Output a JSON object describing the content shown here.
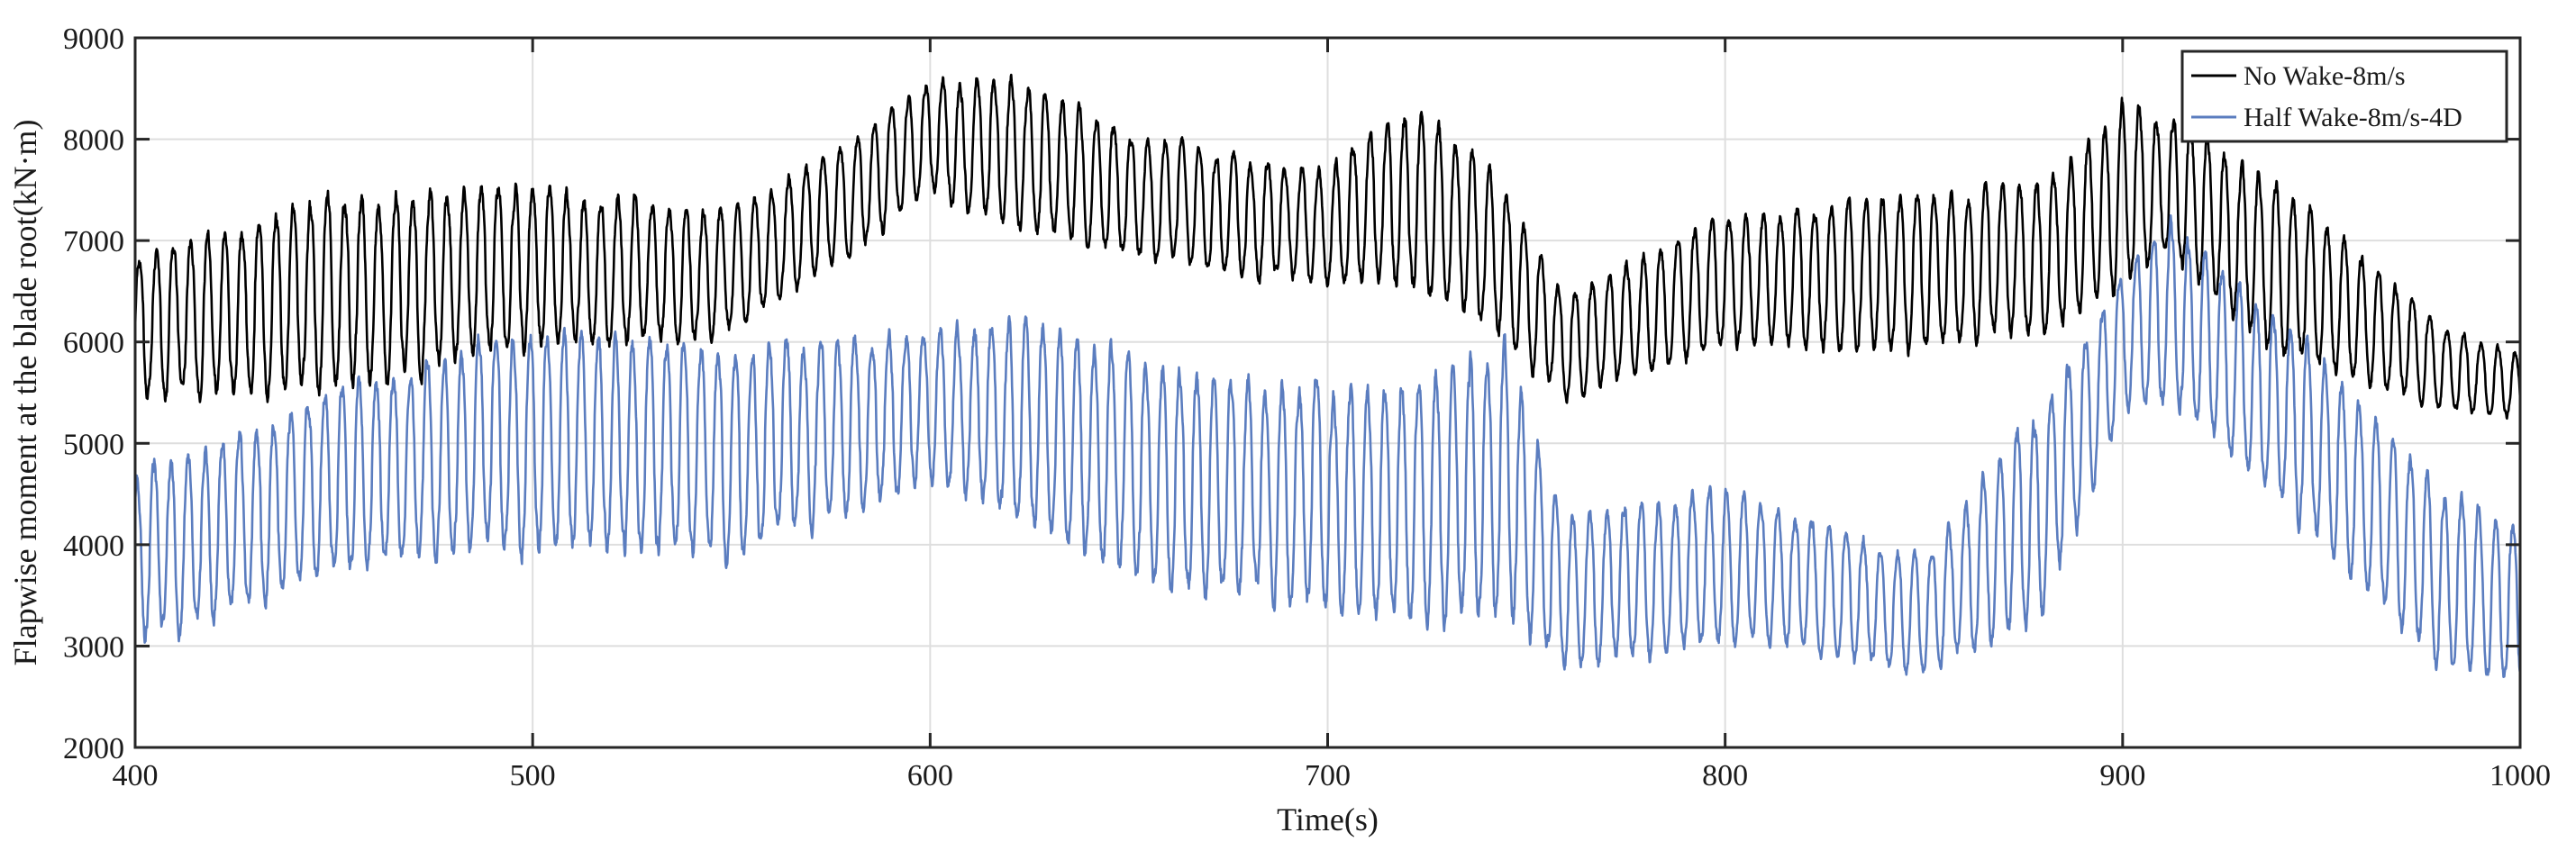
{
  "chart_data": {
    "type": "line",
    "title": "",
    "xlabel": "Time(s)",
    "ylabel": "Flapwise moment at the blade root(kN·m)",
    "xlim": [
      400,
      1000
    ],
    "ylim": [
      2000,
      9000
    ],
    "xticks": [
      400,
      500,
      600,
      700,
      800,
      900,
      1000
    ],
    "yticks": [
      2000,
      3000,
      4000,
      5000,
      6000,
      7000,
      8000,
      9000
    ],
    "grid": true,
    "legend_position": "top-right",
    "series": [
      {
        "name": "No Wake-8m/s",
        "color": "#000000",
        "period_s": 4.3,
        "envelope_t": [
          400,
          450,
          500,
          550,
          600,
          620,
          650,
          700,
          720,
          740,
          760,
          800,
          850,
          880,
          900,
          910,
          940,
          980,
          1000
        ],
        "envelope_max": [
          6900,
          7500,
          7600,
          7300,
          8600,
          8700,
          8100,
          7700,
          8400,
          7800,
          6500,
          7300,
          7500,
          7600,
          8400,
          8300,
          7600,
          6200,
          5900
        ],
        "envelope_min": [
          5400,
          5500,
          5900,
          6000,
          7400,
          7100,
          6800,
          6500,
          6500,
          6100,
          5400,
          5900,
          5900,
          6000,
          6500,
          6800,
          5800,
          5300,
          5200
        ]
      },
      {
        "name": "Half Wake-8m/s-4D",
        "color": "#5b7dbf",
        "period_s": 4.3,
        "envelope_t": [
          400,
          450,
          500,
          550,
          600,
          620,
          650,
          700,
          720,
          745,
          760,
          800,
          850,
          880,
          900,
          910,
          940,
          980,
          1000
        ],
        "envelope_max": [
          4700,
          5600,
          6200,
          6000,
          6200,
          6300,
          5900,
          5600,
          5700,
          6000,
          4300,
          4600,
          3900,
          5500,
          6700,
          7300,
          6300,
          4600,
          4200
        ],
        "envelope_min": [
          2900,
          3700,
          3900,
          3800,
          4600,
          4200,
          3600,
          3300,
          3200,
          3200,
          2700,
          3000,
          2700,
          3200,
          5300,
          5400,
          4300,
          2700,
          2600
        ]
      }
    ]
  }
}
